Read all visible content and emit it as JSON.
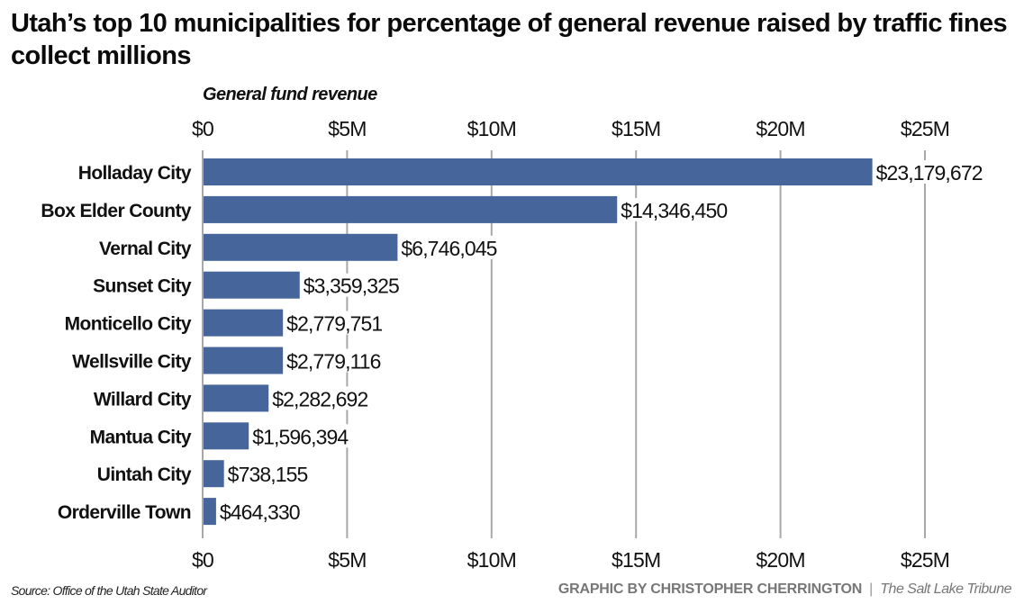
{
  "chart_data": {
    "type": "bar",
    "orientation": "horizontal",
    "title": "Utah’s top 10 municipalities for percentage of general revenue raised by traffic fines collect millions",
    "subtitle": "General fund revenue",
    "xlabel": "General fund revenue",
    "ylabel": "",
    "xlim": [
      0,
      25000000
    ],
    "xticks": [
      0,
      5000000,
      10000000,
      15000000,
      20000000,
      25000000
    ],
    "xtick_labels": [
      "$0",
      "$5M",
      "$10M",
      "$15M",
      "$20M",
      "$25M"
    ],
    "tick_labels_position": "top-and-bottom",
    "grid": true,
    "categories": [
      "Holladay City",
      "Box Elder County",
      "Vernal City",
      "Sunset City",
      "Monticello City",
      "Wellsville City",
      "Willard City",
      "Mantua City",
      "Uintah City",
      "Orderville Town"
    ],
    "values": [
      23179672,
      14346450,
      6746045,
      3359325,
      2779751,
      2779116,
      2282692,
      1596394,
      738155,
      464330
    ],
    "data_labels": [
      "$23,179,672",
      "$14,346,450",
      "$6,746,045",
      "$3,359,325",
      "$2,779,751",
      "$2,779,116",
      "$2,282,692",
      "$1,596,394",
      "$738,155",
      "$464,330"
    ],
    "colors": {
      "bar": "#46659a",
      "grid": "#a8a8a8"
    }
  },
  "footer": {
    "source": "Source: Office of the Utah State Auditor",
    "credit": "GRAPHIC BY CHRISTOPHER CHERRINGTON",
    "separator": "|",
    "publication": "The Salt Lake Tribune"
  }
}
